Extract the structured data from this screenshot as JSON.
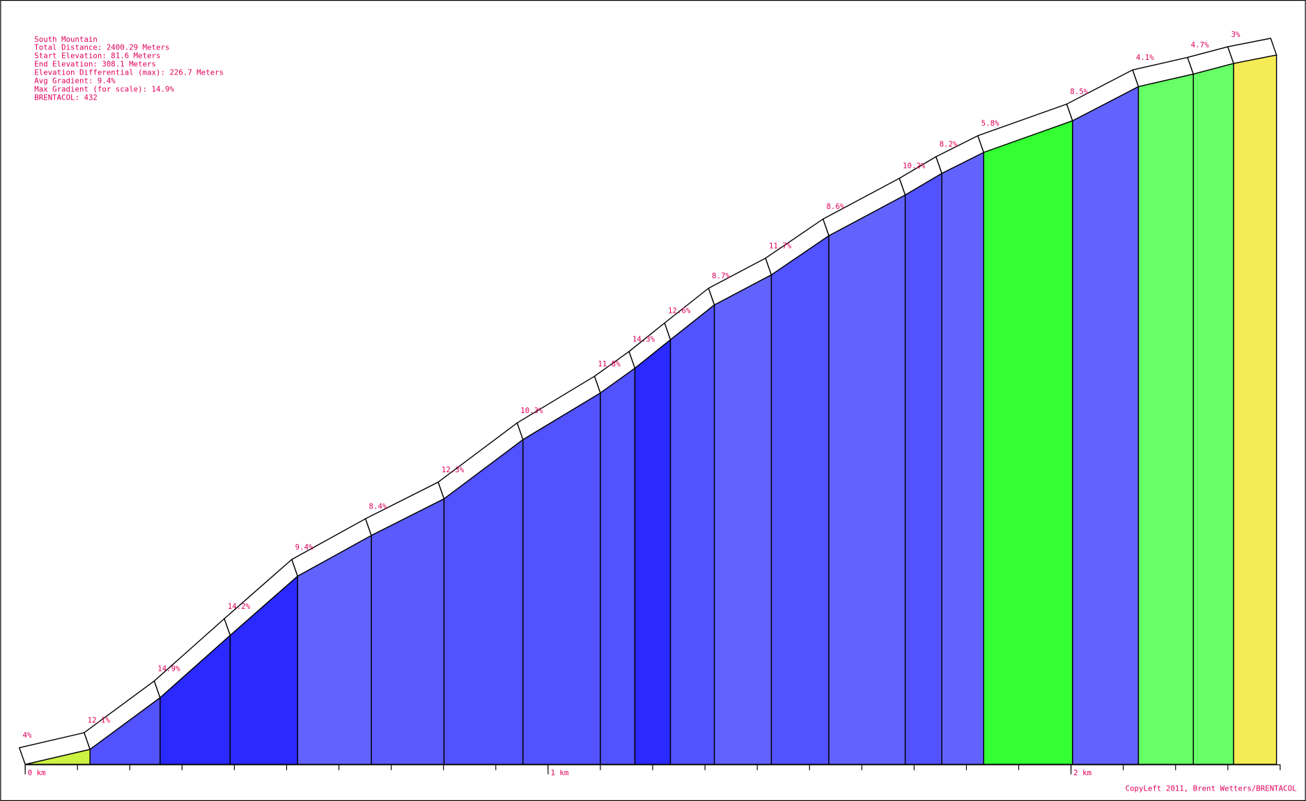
{
  "chart_data": {
    "type": "climb-profile",
    "info": [
      "South Mountain",
      "Total Distance: 2400.29 Meters",
      "Start Elevation: 81.6 Meters",
      "End Elevation: 308.1 Meters",
      "Elevation Differential (max): 226.7 Meters",
      "Avg Gradient: 9.4%",
      "Max Gradient (for scale): 14.9%",
      "BRENTACOL: 432"
    ],
    "copyright": "CopyLeft 2011, Brent Wetters/BRENTACOL",
    "start_km": 0,
    "start_elevation": 81.6,
    "xlim": [
      0,
      2.4
    ],
    "ylim": [
      81.6,
      308.1
    ],
    "xticks": [
      {
        "value": 0,
        "label": "0 km"
      },
      {
        "value": 1,
        "label": "1 km"
      },
      {
        "value": 2,
        "label": "2 km"
      }
    ],
    "xminor_step": 0.1,
    "segments": [
      {
        "end_km": 0.124,
        "end_elevation": 86.4,
        "gradient": 4,
        "gradient_label": "4%",
        "color": "#ccf244"
      },
      {
        "end_km": 0.258,
        "end_elevation": 102.9,
        "gradient": 12.1,
        "gradient_label": "12.1%",
        "color": "#5252ff"
      },
      {
        "end_km": 0.392,
        "end_elevation": 122.8,
        "gradient": 14.9,
        "gradient_label": "14.9%",
        "color": "#2a2aff"
      },
      {
        "end_km": 0.521,
        "end_elevation": 141.7,
        "gradient": 14.2,
        "gradient_label": "14.2%",
        "color": "#2a2aff"
      },
      {
        "end_km": 0.662,
        "end_elevation": 154.7,
        "gradient": 9.4,
        "gradient_label": "9.4%",
        "color": "#6262ff"
      },
      {
        "end_km": 0.801,
        "end_elevation": 166.4,
        "gradient": 8.4,
        "gradient_label": "8.4%",
        "color": "#5a5aff"
      },
      {
        "end_km": 0.952,
        "end_elevation": 185.3,
        "gradient": 12.3,
        "gradient_label": "12.3%",
        "color": "#5252ff"
      },
      {
        "end_km": 1.1,
        "end_elevation": 200.2,
        "gradient": 10.3,
        "gradient_label": "10.3%",
        "color": "#5252ff"
      },
      {
        "end_km": 1.166,
        "end_elevation": 208.1,
        "gradient": 11.8,
        "gradient_label": "11.8%",
        "color": "#5252ff"
      },
      {
        "end_km": 1.234,
        "end_elevation": 217.2,
        "gradient": 14.3,
        "gradient_label": "14.3%",
        "color": "#2a2aff"
      },
      {
        "end_km": 1.318,
        "end_elevation": 228.3,
        "gradient": 12.6,
        "gradient_label": "12.6%",
        "color": "#5252ff"
      },
      {
        "end_km": 1.427,
        "end_elevation": 237.9,
        "gradient": 8.7,
        "gradient_label": "8.7%",
        "color": "#6262ff"
      },
      {
        "end_km": 1.537,
        "end_elevation": 250.4,
        "gradient": 11.7,
        "gradient_label": "11.7%",
        "color": "#5252ff"
      },
      {
        "end_km": 1.683,
        "end_elevation": 263.4,
        "gradient": 8.6,
        "gradient_label": "8.6%",
        "color": "#6262ff"
      },
      {
        "end_km": 1.753,
        "end_elevation": 270.3,
        "gradient": 10.2,
        "gradient_label": "10.2%",
        "color": "#5252ff"
      },
      {
        "end_km": 1.833,
        "end_elevation": 277.0,
        "gradient": 8.2,
        "gradient_label": "8.2%",
        "color": "#6262ff"
      },
      {
        "end_km": 2.003,
        "end_elevation": 287.1,
        "gradient": 5.8,
        "gradient_label": "5.8%",
        "color": "#33ff33"
      },
      {
        "end_km": 2.129,
        "end_elevation": 298.0,
        "gradient": 8.5,
        "gradient_label": "8.5%",
        "color": "#6262ff"
      },
      {
        "end_km": 2.234,
        "end_elevation": 302.0,
        "gradient": 4.1,
        "gradient_label": "4.1%",
        "color": "#66ff66"
      },
      {
        "end_km": 2.311,
        "end_elevation": 305.4,
        "gradient": 4.7,
        "gradient_label": "4.7%",
        "color": "#66ff66"
      },
      {
        "end_km": 2.393,
        "end_elevation": 308.1,
        "gradient": 3,
        "gradient_label": "3%",
        "color": "#f5eb55"
      }
    ]
  }
}
